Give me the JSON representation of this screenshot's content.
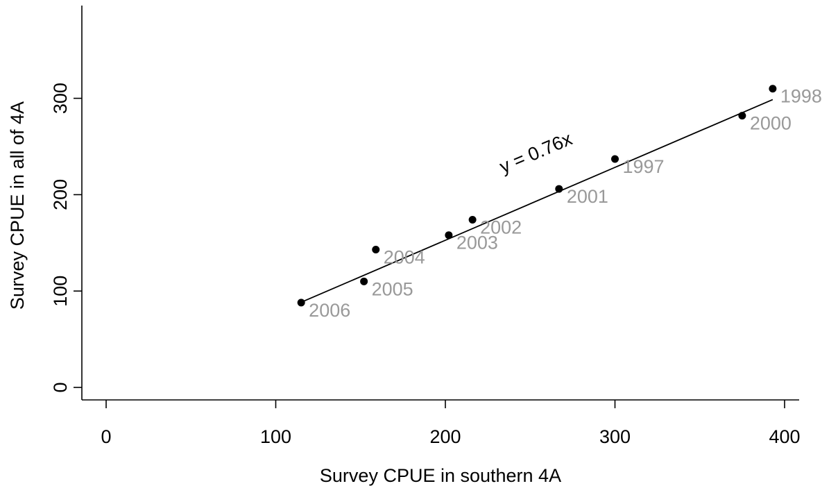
{
  "chart_data": {
    "type": "scatter",
    "xlabel": "Survey CPUE in southern 4A",
    "ylabel": "Survey CPUE in all of 4A",
    "xlim": [
      -15,
      410
    ],
    "ylim": [
      -12,
      395
    ],
    "xticks": [
      0,
      100,
      200,
      300,
      400
    ],
    "yticks": [
      0,
      100,
      200,
      300
    ],
    "grid": false,
    "points": [
      {
        "label": "2006",
        "x": 115,
        "y": 88
      },
      {
        "label": "2005",
        "x": 152,
        "y": 110
      },
      {
        "label": "2004",
        "x": 159,
        "y": 143
      },
      {
        "label": "2003",
        "x": 202,
        "y": 158
      },
      {
        "label": "2002",
        "x": 216,
        "y": 174
      },
      {
        "label": "2001",
        "x": 267,
        "y": 206
      },
      {
        "label": "1997",
        "x": 300,
        "y": 237
      },
      {
        "label": "2000",
        "x": 375,
        "y": 282
      },
      {
        "label": "1998",
        "x": 393,
        "y": 310
      }
    ],
    "fit_line": {
      "slope": 0.76,
      "x_range": [
        115,
        393
      ]
    },
    "annotation": "y = 0.76x",
    "colors": {
      "points": "#000000",
      "point_labels": "#999999",
      "axes": "#000000"
    }
  }
}
